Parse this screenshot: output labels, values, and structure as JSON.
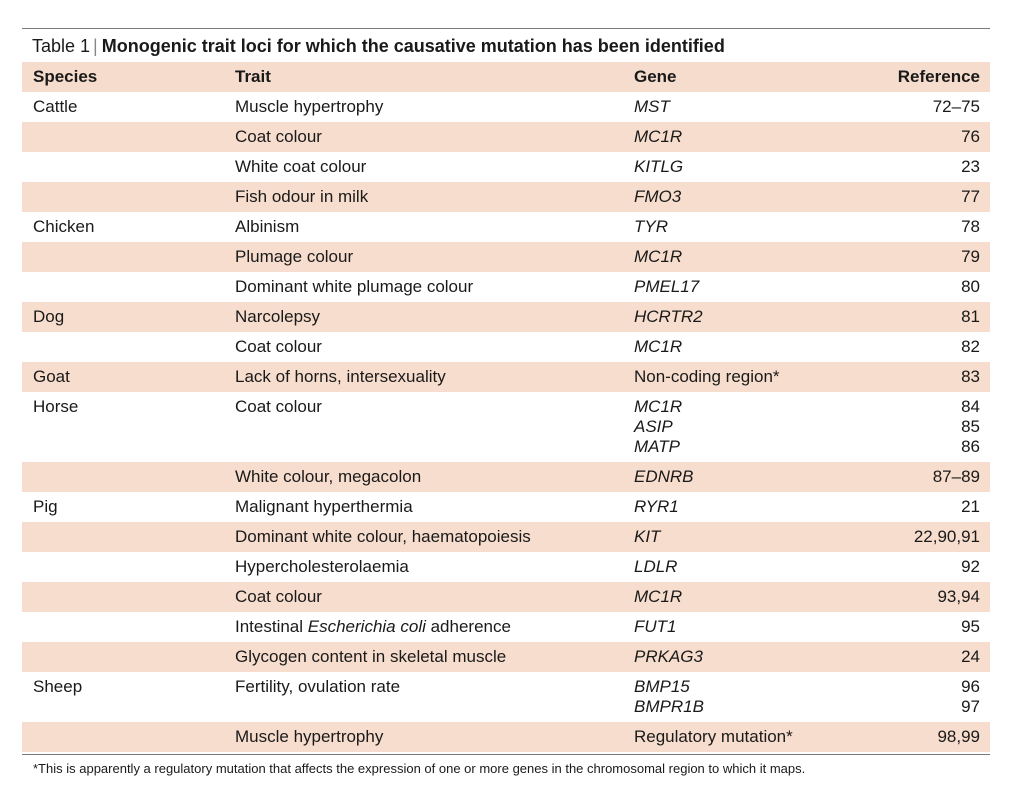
{
  "table": {
    "label": "Table 1",
    "separator": "|",
    "title": "Monogenic trait loci for which the causative mutation has been identified",
    "headers": {
      "species": "Species",
      "trait": "Trait",
      "gene": "Gene",
      "reference": "Reference"
    },
    "rows": [
      {
        "species": "Cattle",
        "trait": "Muscle hypertrophy",
        "gene": [
          "MST"
        ],
        "reference": [
          "72–75"
        ]
      },
      {
        "species": "",
        "trait": "Coat colour",
        "gene": [
          "MC1R"
        ],
        "reference": [
          "76"
        ]
      },
      {
        "species": "",
        "trait": "White coat colour",
        "gene": [
          "KITLG"
        ],
        "reference": [
          "23"
        ]
      },
      {
        "species": "",
        "trait": "Fish odour in milk",
        "gene": [
          "FMO3"
        ],
        "reference": [
          "77"
        ]
      },
      {
        "species": "Chicken",
        "trait": "Albinism",
        "gene": [
          "TYR"
        ],
        "reference": [
          "78"
        ]
      },
      {
        "species": "",
        "trait": "Plumage colour",
        "gene": [
          "MC1R"
        ],
        "reference": [
          "79"
        ]
      },
      {
        "species": "",
        "trait": "Dominant white plumage colour",
        "gene": [
          "PMEL17"
        ],
        "reference": [
          "80"
        ]
      },
      {
        "species": "Dog",
        "trait": "Narcolepsy",
        "gene": [
          "HCRTR2"
        ],
        "reference": [
          "81"
        ]
      },
      {
        "species": "",
        "trait": "Coat colour",
        "gene": [
          "MC1R"
        ],
        "reference": [
          "82"
        ]
      },
      {
        "species": "Goat",
        "trait": "Lack of horns, intersexuality",
        "gene": [
          "Non-coding region*"
        ],
        "reference": [
          "83"
        ]
      },
      {
        "species": "Horse",
        "trait": "Coat colour",
        "gene": [
          "MC1R",
          "ASIP",
          "MATP"
        ],
        "reference": [
          "84",
          "85",
          "86"
        ]
      },
      {
        "species": "",
        "trait": "White colour, megacolon",
        "gene": [
          "EDNRB"
        ],
        "reference": [
          "87–89"
        ]
      },
      {
        "species": "Pig",
        "trait": "Malignant hyperthermia",
        "gene": [
          "RYR1"
        ],
        "reference": [
          "21"
        ]
      },
      {
        "species": "",
        "trait": "Dominant white colour, haematopoiesis",
        "gene": [
          "KIT"
        ],
        "reference": [
          "22,90,91"
        ]
      },
      {
        "species": "",
        "trait": "Hypercholesterolaemia",
        "gene": [
          "LDLR"
        ],
        "reference": [
          "92"
        ]
      },
      {
        "species": "",
        "trait": "Coat colour",
        "gene": [
          "MC1R"
        ],
        "reference": [
          "93,94"
        ]
      },
      {
        "species": "",
        "trait": "Intestinal Escherichia coli adherence",
        "gene": [
          "FUT1"
        ],
        "reference": [
          "95"
        ]
      },
      {
        "species": "",
        "trait": "Glycogen content in skeletal muscle",
        "gene": [
          "PRKAG3"
        ],
        "reference": [
          "24"
        ]
      },
      {
        "species": "Sheep",
        "trait": "Fertility, ovulation rate",
        "gene": [
          "BMP15",
          "BMPR1B"
        ],
        "reference": [
          "96",
          "97"
        ]
      },
      {
        "species": "",
        "trait": "Muscle hypertrophy",
        "gene": [
          "Regulatory mutation*"
        ],
        "reference": [
          "98,99"
        ]
      }
    ],
    "footnote": "*This is apparently a regulatory mutation that affects the expression of one or more genes in the chromosomal region to which it maps."
  },
  "colors": {
    "row_shade": "#f7ddcd",
    "rule": "#7a7a7a"
  }
}
